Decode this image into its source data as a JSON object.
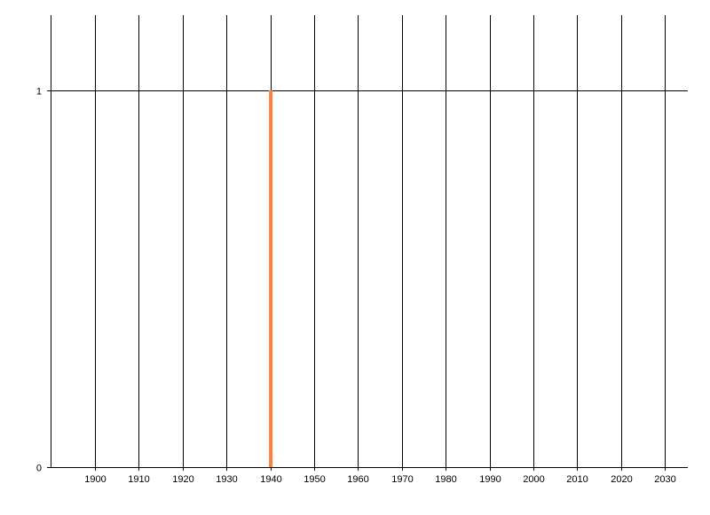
{
  "chart_data": {
    "type": "bar",
    "title": "",
    "xlabel": "",
    "ylabel": "",
    "x": [
      1940
    ],
    "values": [
      1
    ],
    "xlim": [
      1890,
      2035
    ],
    "ylim": [
      0,
      1.2
    ],
    "x_ticks": [
      1900,
      1910,
      1920,
      1930,
      1940,
      1950,
      1960,
      1970,
      1980,
      1990,
      2000,
      2010,
      2020,
      2030
    ],
    "y_ticks": [
      0,
      1
    ],
    "grid": true,
    "legend": "none",
    "colors": {
      "bar": "#FF7F3F",
      "grid": "#000000",
      "axis": "#000000"
    }
  }
}
